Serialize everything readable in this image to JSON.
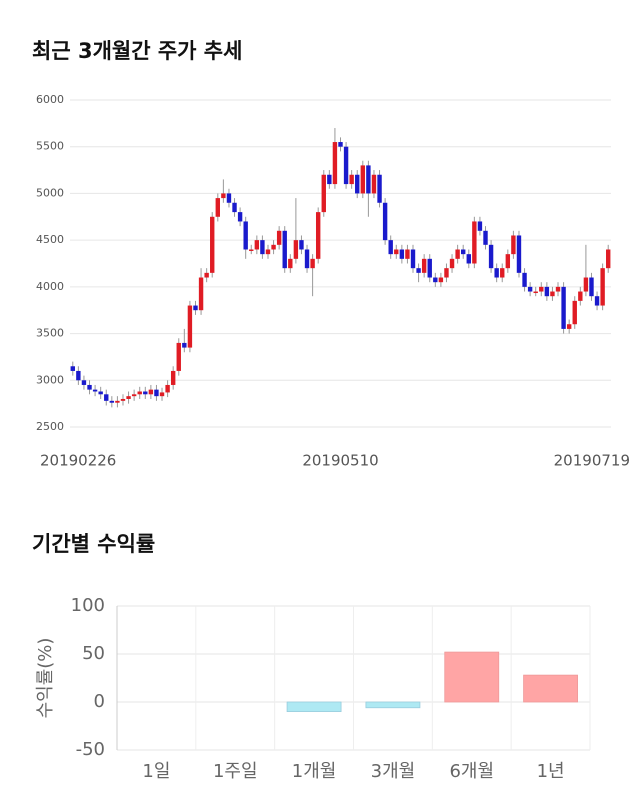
{
  "chart_data": [
    {
      "type": "candlestick",
      "title": "최근 3개월간 주가 추세",
      "categories": [
        "20190226",
        null,
        null,
        null,
        null,
        null,
        null,
        null,
        null,
        null,
        null,
        null,
        null,
        null,
        null,
        null,
        null,
        null,
        null,
        null,
        null,
        null,
        null,
        null,
        null,
        null,
        null,
        null,
        null,
        null,
        null,
        null,
        null,
        null,
        null,
        null,
        null,
        null,
        null,
        null,
        null,
        null,
        null,
        null,
        null,
        null,
        null,
        null,
        "20190510",
        null,
        null,
        null,
        null,
        null,
        null,
        null,
        null,
        null,
        null,
        null,
        null,
        null,
        null,
        null,
        null,
        null,
        null,
        null,
        null,
        null,
        null,
        null,
        null,
        null,
        null,
        null,
        null,
        null,
        null,
        null,
        null,
        null,
        null,
        null,
        null,
        null,
        null,
        null,
        null,
        null,
        null,
        null,
        null,
        null,
        null,
        null,
        "20190719"
      ],
      "open": [
        3150,
        3100,
        3000,
        2950,
        2900,
        2880,
        2850,
        2780,
        2760,
        2780,
        2800,
        2830,
        2850,
        2880,
        2850,
        2900,
        2830,
        2870,
        2950,
        3100,
        3400,
        3350,
        3800,
        3750,
        4100,
        4150,
        4750,
        4950,
        5000,
        4900,
        4800,
        4700,
        4400,
        4400,
        4500,
        4350,
        4400,
        4450,
        4600,
        4200,
        4300,
        4500,
        4400,
        4200,
        4300,
        4800,
        5200,
        5100,
        5550,
        5500,
        5100,
        5200,
        5000,
        5300,
        5000,
        5200,
        4900,
        4500,
        4350,
        4400,
        4300,
        4400,
        4200,
        4150,
        4300,
        4100,
        4050,
        4100,
        4200,
        4300,
        4400,
        4350,
        4250,
        4700,
        4600,
        4450,
        4200,
        4100,
        4200,
        4350,
        4550,
        4150,
        4000,
        3950,
        3950,
        4000,
        3900,
        3950,
        4000,
        3550,
        3600,
        3850,
        3950,
        4100,
        3900,
        3800,
        4200
      ],
      "high": [
        3200,
        3150,
        3050,
        3000,
        2950,
        2930,
        2900,
        2830,
        2830,
        2850,
        2880,
        2900,
        2930,
        2930,
        2950,
        2950,
        2920,
        3000,
        3150,
        3450,
        3550,
        3850,
        3850,
        4200,
        4200,
        4800,
        5000,
        5150,
        5050,
        4950,
        4850,
        4750,
        4450,
        4550,
        4550,
        4450,
        4500,
        4650,
        4650,
        4350,
        4950,
        4550,
        4450,
        4350,
        4850,
        5250,
        5250,
        5700,
        5600,
        5550,
        5250,
        5250,
        5350,
        5350,
        5250,
        5250,
        4950,
        4550,
        4450,
        4450,
        4450,
        4450,
        4250,
        4350,
        4350,
        4150,
        4150,
        4250,
        4350,
        4450,
        4450,
        4400,
        4750,
        4750,
        4650,
        4500,
        4250,
        4250,
        4400,
        4600,
        4600,
        4200,
        4050,
        4000,
        4050,
        4050,
        4000,
        4050,
        4050,
        3650,
        3900,
        4000,
        4450,
        4150,
        3950,
        4250,
        4450
      ],
      "low": [
        3050,
        2950,
        2900,
        2850,
        2830,
        2800,
        2730,
        2710,
        2710,
        2730,
        2750,
        2780,
        2800,
        2800,
        2800,
        2780,
        2780,
        2820,
        2900,
        3050,
        3300,
        3300,
        3700,
        3700,
        4050,
        4100,
        4700,
        4900,
        4850,
        4750,
        4650,
        4300,
        4350,
        4350,
        4300,
        4300,
        4350,
        4400,
        4150,
        4150,
        4250,
        4350,
        4150,
        3900,
        4250,
        4750,
        5050,
        5050,
        5450,
        5050,
        5050,
        4950,
        4950,
        4750,
        4950,
        4850,
        4450,
        4300,
        4300,
        4250,
        4250,
        4150,
        4050,
        4100,
        4050,
        4000,
        4000,
        4050,
        4150,
        4250,
        4300,
        4200,
        4200,
        4550,
        4400,
        4150,
        4050,
        4050,
        4150,
        4300,
        4100,
        3950,
        3900,
        3900,
        3900,
        3850,
        3850,
        3900,
        3500,
        3500,
        3550,
        3800,
        3900,
        3850,
        3750,
        3750,
        4150
      ],
      "close": [
        3100,
        3000,
        2950,
        2900,
        2880,
        2850,
        2780,
        2760,
        2780,
        2800,
        2830,
        2850,
        2880,
        2850,
        2900,
        2830,
        2870,
        2950,
        3100,
        3400,
        3350,
        3800,
        3750,
        4100,
        4150,
        4750,
        4950,
        5000,
        4900,
        4800,
        4700,
        4400,
        4400,
        4500,
        4350,
        4400,
        4450,
        4600,
        4200,
        4300,
        4500,
        4400,
        4200,
        4300,
        4800,
        5200,
        5100,
        5550,
        5500,
        5100,
        5200,
        5000,
        5300,
        5000,
        5200,
        4900,
        4500,
        4350,
        4400,
        4300,
        4400,
        4200,
        4150,
        4300,
        4100,
        4050,
        4100,
        4200,
        4300,
        4400,
        4350,
        4250,
        4700,
        4600,
        4450,
        4200,
        4100,
        4200,
        4350,
        4550,
        4150,
        4000,
        3950,
        3950,
        4000,
        3900,
        3950,
        4000,
        3550,
        3600,
        3850,
        3950,
        4100,
        3900,
        3800,
        4200,
        4400
      ],
      "up_color": "#e01c24",
      "down_color": "#1a1acc",
      "ylim": [
        2500,
        6000
      ],
      "yticks": [
        2500,
        3000,
        3500,
        4000,
        4500,
        5000,
        5500,
        6000
      ],
      "grid": true
    },
    {
      "type": "bar",
      "title": "기간별 수익률",
      "y_label": "수익률(%)",
      "categories": [
        "1일",
        "1주일",
        "1개월",
        "3개월",
        "6개월",
        "1년"
      ],
      "values": [
        0,
        0,
        -10,
        -6,
        52,
        28
      ],
      "positive_color": "#ffa5a5",
      "negative_color": "#aee9f3",
      "ylim": [
        -50,
        100
      ],
      "yticks": [
        -50,
        0,
        50,
        100
      ],
      "grid": true
    }
  ]
}
